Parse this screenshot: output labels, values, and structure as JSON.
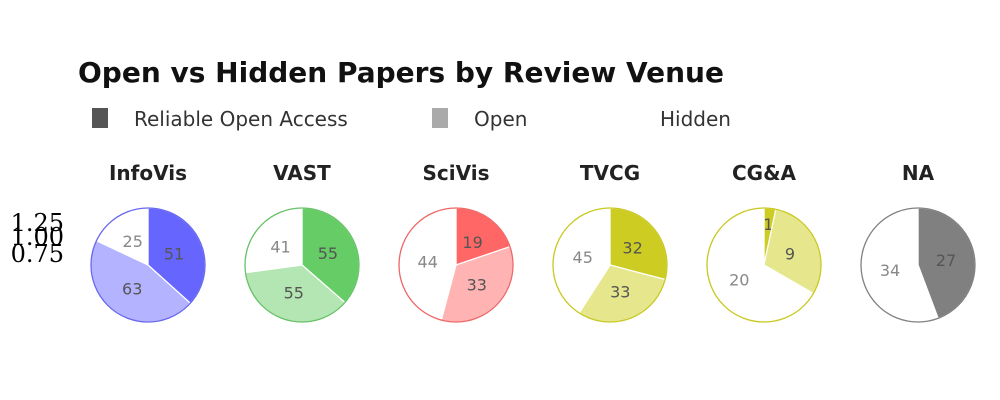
{
  "chart_data": {
    "type": "pie",
    "title": "Open vs Hidden Papers by Review Venue",
    "legend": [
      {
        "label": "Reliable Open Access",
        "color": "#555555"
      },
      {
        "label": "Open",
        "color": "#aaaaaa"
      },
      {
        "label": "Hidden",
        "color": "#ffffff"
      }
    ],
    "axis_ticks": [
      "1.25",
      "1.00",
      "0.75"
    ],
    "categories": [
      "Reliable Open Access",
      "Open",
      "Hidden"
    ],
    "venues": [
      {
        "name": "InfoVis",
        "values": [
          51,
          63,
          25
        ],
        "colors": [
          "#6666ff",
          "#b3b3ff",
          "#ffffff"
        ],
        "stroke": "#6666ee"
      },
      {
        "name": "VAST",
        "values": [
          55,
          55,
          41
        ],
        "colors": [
          "#66cc66",
          "#b3e6b3",
          "#ffffff"
        ],
        "stroke": "#66c266"
      },
      {
        "name": "SciVis",
        "values": [
          19,
          33,
          44
        ],
        "colors": [
          "#ff6666",
          "#ffb3b3",
          "#ffffff"
        ],
        "stroke": "#ee6666"
      },
      {
        "name": "TVCG",
        "values": [
          32,
          33,
          45
        ],
        "colors": [
          "#cccc22",
          "#e6e68c",
          "#ffffff"
        ],
        "stroke": "#c8c820"
      },
      {
        "name": "CG&A",
        "values": [
          1,
          9,
          20
        ],
        "colors": [
          "#cccc22",
          "#e6e68c",
          "#ffffff"
        ],
        "stroke": "#c8c820"
      },
      {
        "name": "NA",
        "values": [
          27,
          0,
          34
        ],
        "colors": [
          "#808080",
          "#bfbfbf",
          "#ffffff"
        ],
        "stroke": "#808080"
      }
    ]
  }
}
